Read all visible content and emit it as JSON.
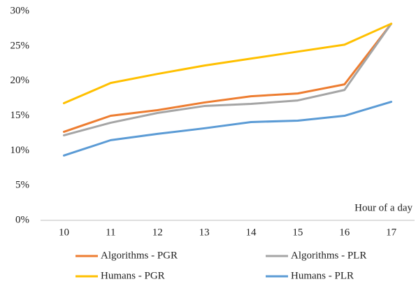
{
  "chart_data": {
    "type": "line",
    "x_label": "Hour of a day",
    "categories": [
      "10",
      "11",
      "12",
      "13",
      "14",
      "15",
      "16",
      "17"
    ],
    "series": [
      {
        "name": "Algorithms - PGR",
        "color": "#ED7D31",
        "values": [
          12.7,
          15.0,
          15.8,
          16.9,
          17.8,
          18.2,
          19.5,
          28.2
        ]
      },
      {
        "name": "Algorithms - PLR",
        "color": "#A5A5A5",
        "values": [
          12.2,
          14.0,
          15.4,
          16.4,
          16.7,
          17.2,
          18.7,
          28.2
        ]
      },
      {
        "name": "Humans - PGR",
        "color": "#FFC000",
        "values": [
          16.8,
          19.7,
          21.0,
          22.2,
          23.2,
          24.2,
          25.2,
          28.2
        ]
      },
      {
        "name": "Humans - PLR",
        "color": "#5B9BD5",
        "values": [
          9.3,
          11.5,
          12.4,
          13.2,
          14.1,
          14.3,
          15.0,
          17.0
        ]
      }
    ],
    "ylim": [
      0,
      30
    ],
    "yticks": [
      {
        "value": 0,
        "label": "0%"
      },
      {
        "value": 5,
        "label": "5%"
      },
      {
        "value": 10,
        "label": "10%"
      },
      {
        "value": 15,
        "label": "15%"
      },
      {
        "value": 20,
        "label": "20%"
      },
      {
        "value": 25,
        "label": "25%"
      },
      {
        "value": 30,
        "label": "30%"
      }
    ],
    "grid": false,
    "legend": "bottom"
  }
}
